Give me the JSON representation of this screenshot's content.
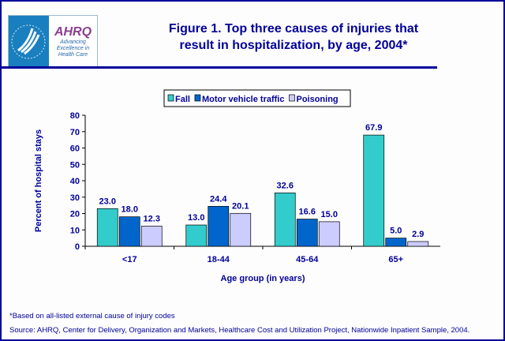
{
  "header": {
    "title_line1": "Figure 1. Top three causes of injuries that",
    "title_line2": "result in hospitalization, by age, 2004*",
    "logo_text": "AHRQ Advancing Excellence in Health Care"
  },
  "footer": {
    "note": "*Based on all-listed external cause of injury codes",
    "source": "Source: AHRQ, Center for Delivery, Organization and Markets, Healthcare Cost and Utilization Project, Nationwide Inpatient Sample, 2004."
  },
  "chart_data": {
    "type": "bar",
    "title": "Figure 1. Top three causes of injuries that result in hospitalization, by age, 2004*",
    "xlabel": "Age group (in years)",
    "ylabel": "Percent of hospital stays",
    "ylim": [
      0,
      80
    ],
    "yticks": [
      0,
      10,
      20,
      30,
      40,
      50,
      60,
      70,
      80
    ],
    "categories": [
      "<17",
      "18-44",
      "45-64",
      "65+"
    ],
    "legend_position": "top",
    "grid": false,
    "series": [
      {
        "name": "Fall",
        "color": "#33CCCC",
        "values": [
          23.0,
          13.0,
          32.6,
          67.9
        ]
      },
      {
        "name": "Motor vehicle traffic",
        "color": "#0066CC",
        "values": [
          18.0,
          24.4,
          16.6,
          5.0
        ]
      },
      {
        "name": "Poisoning",
        "color": "#CCCCFF",
        "values": [
          12.3,
          20.1,
          15.0,
          2.9
        ]
      }
    ]
  }
}
